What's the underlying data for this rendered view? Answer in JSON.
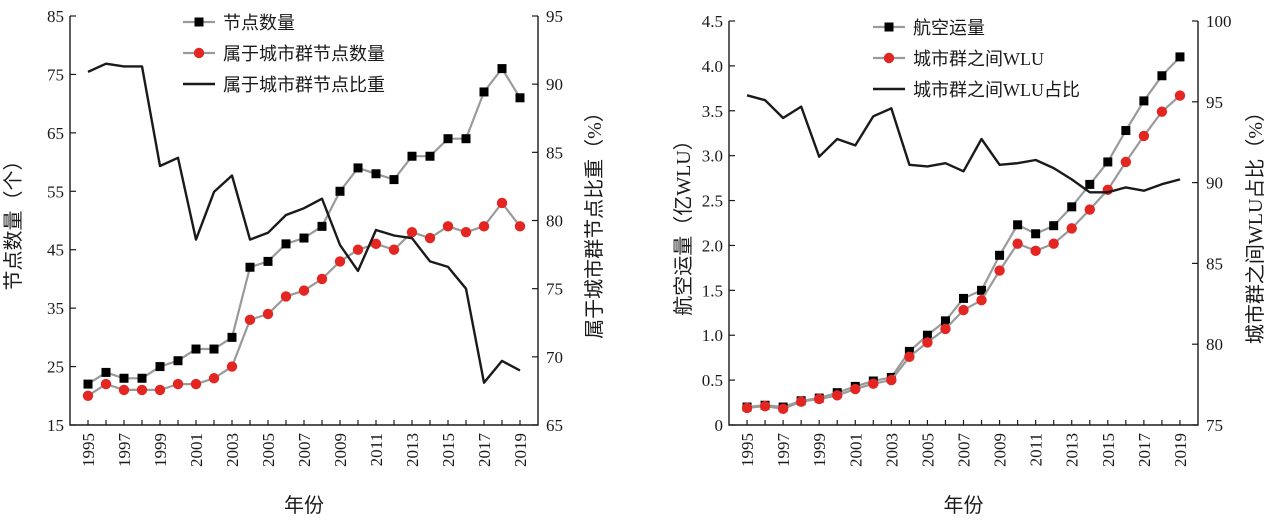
{
  "chart_data": [
    {
      "type": "line",
      "x": [
        1995,
        1996,
        1997,
        1998,
        1999,
        2000,
        2001,
        2002,
        2003,
        2004,
        2005,
        2006,
        2007,
        2008,
        2009,
        2010,
        2011,
        2012,
        2013,
        2014,
        2015,
        2016,
        2017,
        2018,
        2019
      ],
      "x_ticks": [
        1995,
        1997,
        1999,
        2001,
        2003,
        2005,
        2007,
        2009,
        2011,
        2013,
        2015,
        2017,
        2019
      ],
      "xlabel": "年份",
      "ylabel_left": "节点数量（个）",
      "ylabel_right": "属于城市群节点比重（%）",
      "ylim_left": [
        15,
        85
      ],
      "ylim_right": [
        65,
        95
      ],
      "yticks_left": [
        15,
        25,
        35,
        45,
        55,
        65,
        75,
        85
      ],
      "yticks_right": [
        65,
        70,
        75,
        80,
        85,
        90,
        95
      ],
      "legend_position": "top-center",
      "series": [
        {
          "name": "节点数量",
          "axis": "left",
          "marker": "square",
          "color": "#000000",
          "line_color": "#9a9a9a",
          "values": [
            22,
            24,
            23,
            23,
            25,
            26,
            28,
            28,
            30,
            42,
            43,
            46,
            47,
            49,
            55,
            59,
            58,
            57,
            61,
            61,
            64,
            64,
            72,
            76,
            71
          ]
        },
        {
          "name": "属于城市群节点数量",
          "axis": "left",
          "marker": "circle",
          "color": "#e32622",
          "line_color": "#9a9a9a",
          "values": [
            20,
            22,
            21,
            21,
            21,
            22,
            22,
            23,
            25,
            33,
            34,
            37,
            38,
            40,
            43,
            45,
            46,
            45,
            48,
            47,
            49,
            48,
            49,
            53,
            49
          ]
        },
        {
          "name": "属于城市群节点比重",
          "axis": "right",
          "marker": "none",
          "color": "#1a1a1a",
          "values": [
            90.9,
            91.5,
            91.3,
            91.3,
            84.0,
            84.6,
            78.6,
            82.1,
            83.3,
            78.6,
            79.1,
            80.4,
            80.9,
            81.6,
            78.2,
            76.3,
            79.3,
            78.9,
            78.7,
            77.0,
            76.6,
            75.0,
            68.1,
            69.7,
            69.0
          ]
        }
      ]
    },
    {
      "type": "line",
      "x": [
        1995,
        1996,
        1997,
        1998,
        1999,
        2000,
        2001,
        2002,
        2003,
        2004,
        2005,
        2006,
        2007,
        2008,
        2009,
        2010,
        2011,
        2012,
        2013,
        2014,
        2015,
        2016,
        2017,
        2018,
        2019
      ],
      "x_ticks": [
        1995,
        1997,
        1999,
        2001,
        2003,
        2005,
        2007,
        2009,
        2011,
        2013,
        2015,
        2017,
        2019
      ],
      "xlabel": "年份",
      "ylabel_left": "航空运量（亿WLU）",
      "ylabel_right": "城市群之间WLU占比（%）",
      "ylim_left": [
        0,
        4.5
      ],
      "ylim_right": [
        75,
        100
      ],
      "yticks_left": [
        "0",
        "0.5",
        "1.0",
        "1.5",
        "2.0",
        "2.5",
        "3.0",
        "3.5",
        "4.0",
        "4.5"
      ],
      "yticks_right": [
        75,
        80,
        85,
        90,
        95,
        100
      ],
      "legend_position": "top-center",
      "series": [
        {
          "name": "航空运量",
          "axis": "left",
          "marker": "square",
          "color": "#000000",
          "line_color": "#9a9a9a",
          "values": [
            0.2,
            0.22,
            0.2,
            0.27,
            0.3,
            0.36,
            0.43,
            0.49,
            0.53,
            0.82,
            1.0,
            1.16,
            1.41,
            1.5,
            1.89,
            2.23,
            2.13,
            2.22,
            2.43,
            2.68,
            2.93,
            3.28,
            3.61,
            3.89,
            4.1
          ]
        },
        {
          "name": "城市群之间WLU",
          "axis": "left",
          "marker": "circle",
          "color": "#e32622",
          "line_color": "#9a9a9a",
          "values": [
            0.19,
            0.21,
            0.18,
            0.26,
            0.29,
            0.33,
            0.4,
            0.46,
            0.5,
            0.76,
            0.92,
            1.07,
            1.28,
            1.39,
            1.72,
            2.02,
            1.94,
            2.02,
            2.19,
            2.4,
            2.62,
            2.93,
            3.22,
            3.49,
            3.67
          ]
        },
        {
          "name": "城市群之间WLU占比",
          "axis": "right",
          "marker": "none",
          "color": "#1a1a1a",
          "values": [
            95.4,
            95.1,
            94.0,
            94.7,
            91.6,
            92.7,
            92.3,
            94.1,
            94.6,
            91.1,
            91.0,
            91.2,
            90.7,
            92.7,
            91.1,
            91.2,
            91.4,
            90.9,
            90.2,
            89.4,
            89.4,
            89.7,
            89.5,
            89.9,
            90.2
          ]
        }
      ]
    }
  ]
}
